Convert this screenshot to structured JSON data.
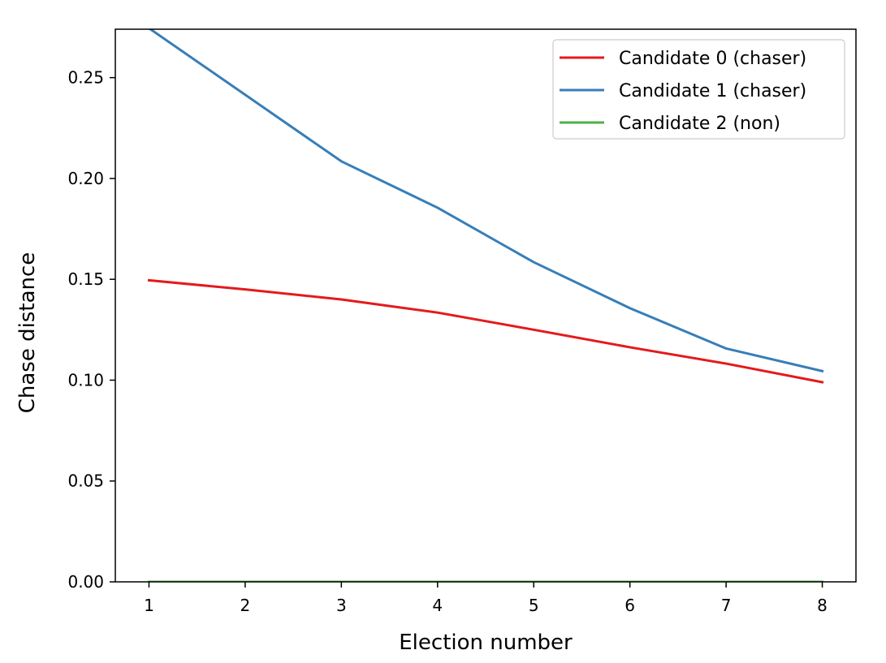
{
  "chart_data": {
    "type": "line",
    "title": "",
    "xlabel": "Election number",
    "ylabel": "Chase distance",
    "x": [
      1,
      2,
      3,
      4,
      5,
      6,
      7,
      8
    ],
    "xlim": [
      0.65,
      8.35
    ],
    "ylim": [
      0.0,
      0.274
    ],
    "xticks": [
      1,
      2,
      3,
      4,
      5,
      6,
      7,
      8
    ],
    "xtick_labels": [
      "1",
      "2",
      "3",
      "4",
      "5",
      "6",
      "7",
      "8"
    ],
    "yticks": [
      0.0,
      0.05,
      0.1,
      0.15,
      0.2,
      0.25
    ],
    "ytick_labels": [
      "0.00",
      "0.05",
      "0.10",
      "0.15",
      "0.20",
      "0.25"
    ],
    "grid": false,
    "legend_position": "top-right",
    "series": [
      {
        "name": "Candidate 0 (chaser)",
        "color": "#e41a1c",
        "values": [
          0.1495,
          0.145,
          0.14,
          0.1335,
          0.125,
          0.1163,
          0.1082,
          0.099
        ]
      },
      {
        "name": "Candidate 1 (chaser)",
        "color": "#377eb8",
        "values": [
          0.2745,
          0.2415,
          0.2085,
          0.1855,
          0.1585,
          0.1357,
          0.1157,
          0.1045
        ]
      },
      {
        "name": "Candidate 2 (non)",
        "color": "#4daf4a",
        "values": [
          0,
          0,
          0,
          0,
          0,
          0,
          0,
          0
        ]
      }
    ]
  }
}
